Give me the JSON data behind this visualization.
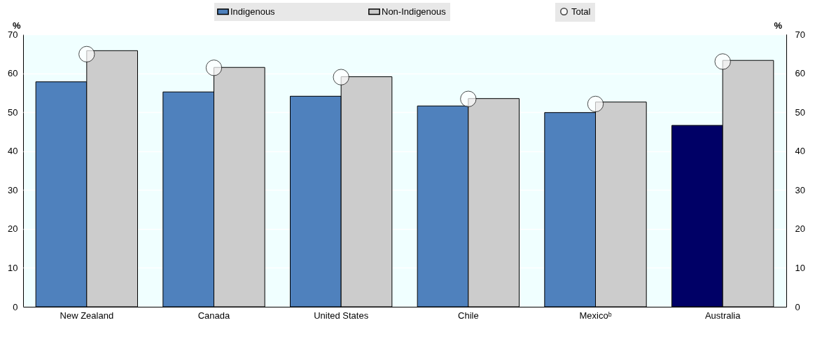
{
  "chart_data": {
    "type": "bar",
    "categories": [
      "New Zealand",
      "Canada",
      "United States",
      "Chile",
      "Mexicoᵇ",
      "Australia"
    ],
    "series": [
      {
        "name": "Indigenous",
        "color": "#4f81bd",
        "colors": [
          "#4f81bd",
          "#4f81bd",
          "#4f81bd",
          "#4f81bd",
          "#4f81bd",
          "#000066"
        ],
        "values": [
          57.8,
          55.2,
          54.1,
          51.6,
          49.9,
          46.6
        ]
      },
      {
        "name": "Non-Indigenous",
        "color": "#cccccc",
        "values": [
          65.8,
          61.5,
          59.1,
          53.5,
          52.6,
          63.3
        ]
      },
      {
        "name": "Total",
        "type": "scatter",
        "color": "#ffffff",
        "marker": "circle",
        "values": [
          64.9,
          61.4,
          59.0,
          53.4,
          52.1,
          63.0
        ]
      }
    ],
    "ylabel": "%",
    "y2label": "%",
    "ylim": [
      0,
      70
    ],
    "yticks": [
      0,
      10,
      20,
      30,
      40,
      50,
      60,
      70
    ],
    "y2lim": [
      0,
      70
    ],
    "y2ticks": [
      0,
      10,
      20,
      30,
      40,
      50,
      60,
      70
    ],
    "grid": "y",
    "legend": "top"
  }
}
